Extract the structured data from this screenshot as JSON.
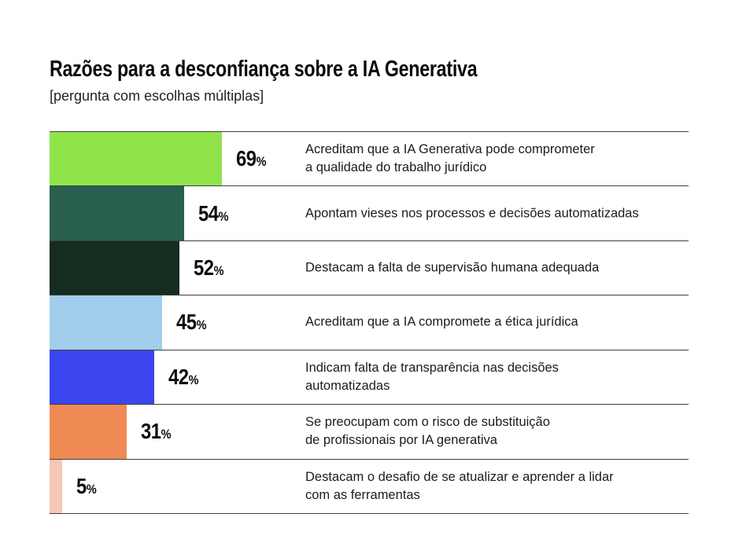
{
  "title": "Razões para a desconfiança sobre a IA Generativa",
  "subtitle": "[pergunta com escolhas múltiplas]",
  "chart_data": {
    "type": "bar",
    "orientation": "horizontal",
    "title": "Razões para a desconfiança sobre a IA Generativa",
    "subtitle": "[pergunta com escolhas múltiplas]",
    "unit": "%",
    "xlim": [
      0,
      100
    ],
    "grid": false,
    "legend": "none",
    "categories": [
      "Acreditam que a IA Generativa pode comprometer a qualidade do trabalho jurídico",
      "Apontam vieses nos processos e decisões automatizadas",
      "Destacam a falta de supervisão humana adequada",
      "Acreditam que a IA compromete a ética jurídica",
      "Indicam falta de transparência nas decisões automatizadas",
      "Se preocupam com o risco de substituição de profissionais por IA generativa",
      "Destacam o desafio de se atualizar e aprender a lidar com as ferramentas"
    ],
    "values": [
      69,
      54,
      52,
      45,
      42,
      31,
      5
    ],
    "bars": [
      {
        "value": 69,
        "label": "69%",
        "color": "#90e44a",
        "description_lines": [
          "Acreditam que a IA Generativa pode comprometer",
          "a qualidade do trabalho jurídico"
        ]
      },
      {
        "value": 54,
        "label": "54%",
        "color": "#295f4e",
        "description_lines": [
          "Apontam vieses nos processos e decisões automatizadas"
        ]
      },
      {
        "value": 52,
        "label": "52%",
        "color": "#152c21",
        "description_lines": [
          "Destacam a falta de supervisão humana adequada"
        ]
      },
      {
        "value": 45,
        "label": "45%",
        "color": "#a2cdec",
        "description_lines": [
          "Acreditam que a IA compromete a ética jurídica"
        ]
      },
      {
        "value": 42,
        "label": "42%",
        "color": "#3c46ee",
        "description_lines": [
          "Indicam falta de transparência nas decisões",
          "automatizadas"
        ]
      },
      {
        "value": 31,
        "label": "31%",
        "color": "#ef8a55",
        "description_lines": [
          "Se preocupam com o risco de substituição",
          "de profissionais por IA generativa"
        ]
      },
      {
        "value": 5,
        "label": "5%",
        "color": "#f6c6b6",
        "description_lines": [
          "Destacam o desafio de se atualizar e aprender a lidar",
          "com as ferramentas"
        ]
      }
    ]
  }
}
